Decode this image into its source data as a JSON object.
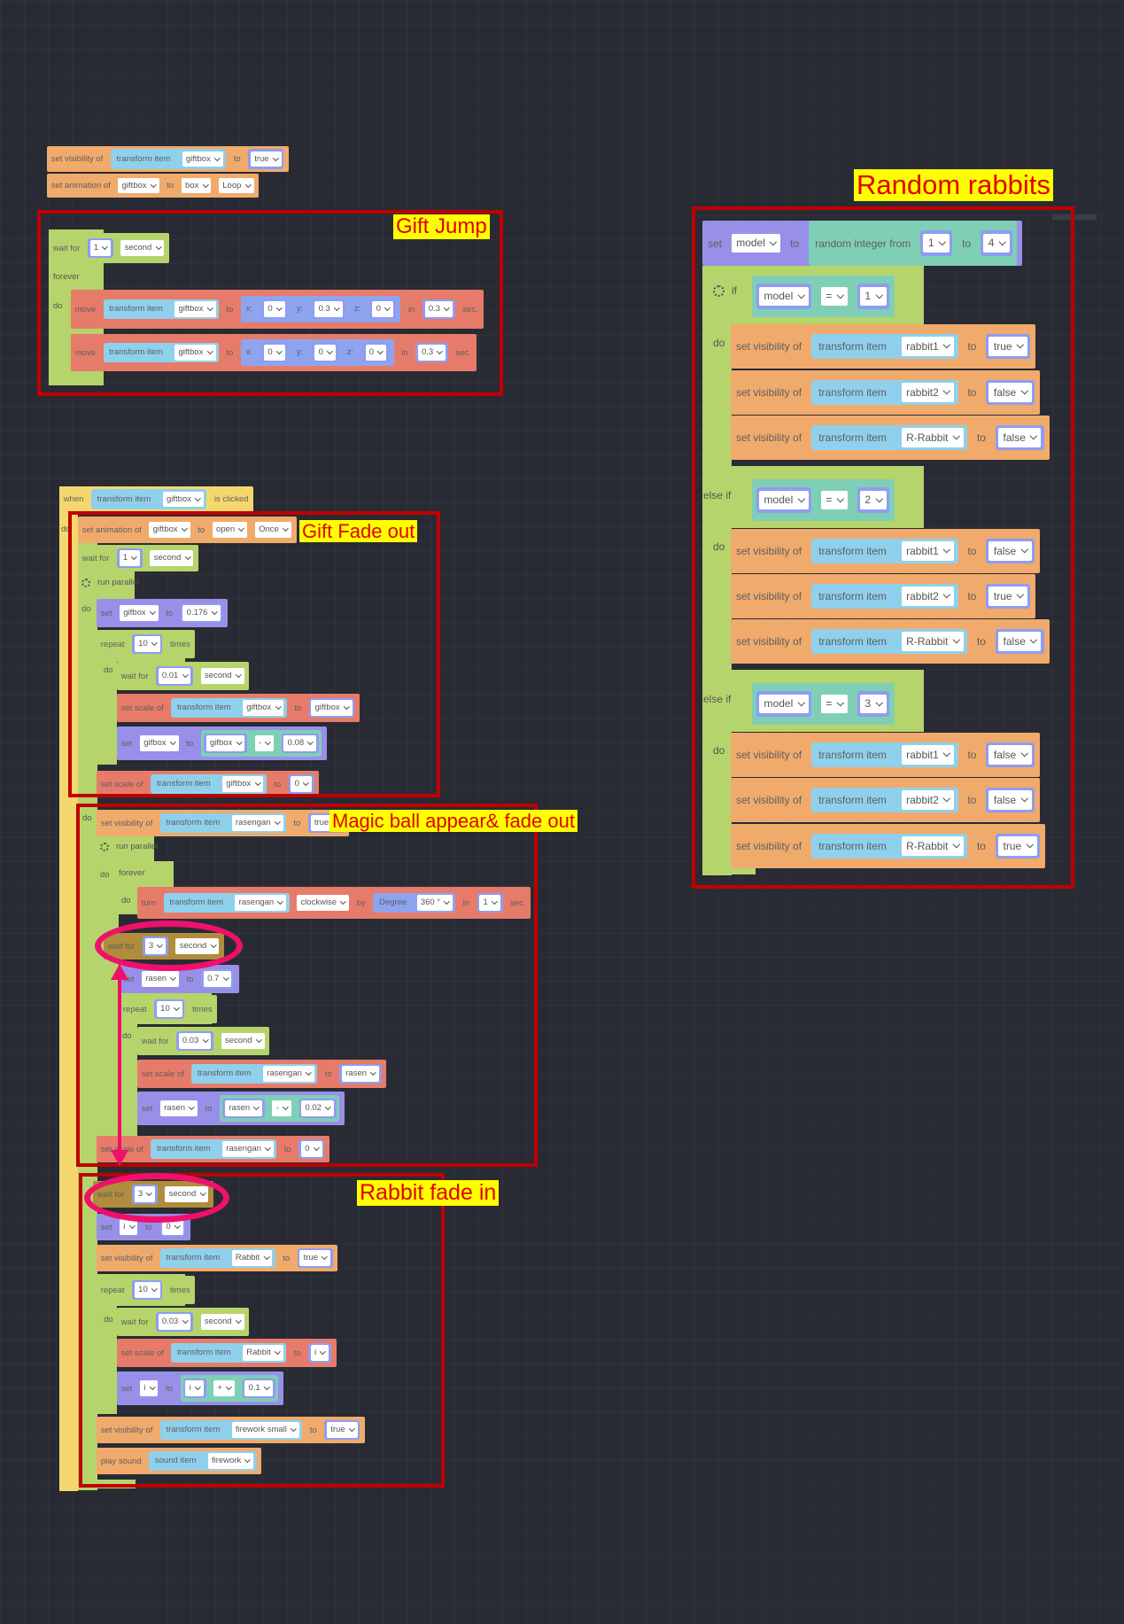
{
  "colors": {
    "orange": "#f0aa6c",
    "green": "#b6d46c",
    "red": "#e67b6a",
    "purple": "#9890e8",
    "yellow": "#f5d76e",
    "brown": "#b08c3c",
    "teal": "#7fcfb6",
    "annotation_border": "#c00000",
    "annotation_text": "#e00000",
    "annotation_bg": "#ffff00",
    "highlight": "#f0106c"
  },
  "icons": {
    "gear": "gear-icon",
    "dropdown": "chevron-down-icon"
  },
  "annotations": {
    "gift_jump": "Gift Jump",
    "gift_fade_out": "Gift Fade out",
    "magic_ball": "Magic ball appear& fade out",
    "rabbit_fade_in": "Rabbit fade in",
    "random_rabbits": "Random rabbits"
  },
  "labels": [
    "forever",
    "do",
    "do",
    "run parallel",
    "do",
    "do",
    "do",
    "run parallel",
    "do",
    "forever",
    "do",
    "do",
    "do",
    "if",
    "do",
    "else if",
    "do",
    "else if",
    "do"
  ],
  "blocks": [
    {
      "t": "orange",
      "p": [
        [
          "L",
          "set visibility of"
        ],
        [
          "I",
          "transform item",
          "giftbox"
        ],
        [
          "L",
          "to"
        ],
        [
          "S",
          "true"
        ]
      ]
    },
    {
      "t": "orange",
      "p": [
        [
          "L",
          "set animation of"
        ],
        [
          "D",
          "giftbox"
        ],
        [
          "L",
          "to"
        ],
        [
          "D",
          "box"
        ],
        [
          "D",
          "Loop"
        ]
      ]
    },
    {
      "t": "green",
      "p": [
        [
          "L",
          "wait for"
        ],
        [
          "S",
          "1"
        ],
        [
          "D",
          "second"
        ]
      ]
    },
    {
      "t": "red",
      "p": [
        [
          "L",
          "move"
        ],
        [
          "I",
          "transform item",
          "giftbox"
        ],
        [
          "L",
          "to"
        ],
        [
          "X",
          "x:",
          "0",
          "y:",
          "0.3",
          "z:",
          "0"
        ],
        [
          "L",
          "in"
        ],
        [
          "S",
          "0.3"
        ],
        [
          "L",
          "sec."
        ]
      ]
    },
    {
      "t": "red",
      "p": [
        [
          "L",
          "move"
        ],
        [
          "I",
          "transform item",
          "giftbox"
        ],
        [
          "L",
          "to"
        ],
        [
          "X",
          "x:",
          "0",
          "y:",
          "0",
          "z:",
          "0"
        ],
        [
          "L",
          "in"
        ],
        [
          "S",
          "0.3"
        ],
        [
          "L",
          "sec."
        ]
      ]
    },
    {
      "t": "yellow",
      "p": [
        [
          "L",
          "when"
        ],
        [
          "I",
          "transform item",
          "giftbox"
        ],
        [
          "L",
          "is clicked"
        ]
      ]
    },
    {
      "t": "orange",
      "p": [
        [
          "L",
          "set animation of"
        ],
        [
          "D",
          "giftbox"
        ],
        [
          "L",
          "to"
        ],
        [
          "D",
          "open"
        ],
        [
          "D",
          "Once"
        ]
      ]
    },
    {
      "t": "green",
      "p": [
        [
          "L",
          "wait for"
        ],
        [
          "S",
          "1"
        ],
        [
          "D",
          "second"
        ]
      ]
    },
    {
      "t": "purple",
      "p": [
        [
          "L",
          "set"
        ],
        [
          "D",
          "gifbox"
        ],
        [
          "L",
          "to"
        ],
        [
          "S",
          "0.176"
        ]
      ]
    },
    {
      "t": "green",
      "p": [
        [
          "L",
          "repeat"
        ],
        [
          "S",
          "10"
        ],
        [
          "L",
          "times"
        ]
      ]
    },
    {
      "t": "green",
      "p": [
        [
          "L",
          "wait for"
        ],
        [
          "S",
          "0.01"
        ],
        [
          "D",
          "second"
        ]
      ]
    },
    {
      "t": "red",
      "p": [
        [
          "L",
          "set scale of"
        ],
        [
          "I",
          "transform item",
          "giftbox"
        ],
        [
          "L",
          "to"
        ],
        [
          "S",
          "giftbox"
        ]
      ]
    },
    {
      "t": "purple",
      "p": [
        [
          "L",
          "set"
        ],
        [
          "D",
          "gifbox"
        ],
        [
          "L",
          "to"
        ],
        [
          "E",
          "gifbox",
          "-",
          "0.08"
        ]
      ]
    },
    {
      "t": "red",
      "p": [
        [
          "L",
          "set scale of"
        ],
        [
          "I",
          "transform item",
          "giftbox"
        ],
        [
          "L",
          "to"
        ],
        [
          "S",
          "0"
        ]
      ]
    },
    {
      "t": "orange",
      "p": [
        [
          "L",
          "set visibility of"
        ],
        [
          "I",
          "transform item",
          "rasengan"
        ],
        [
          "L",
          "to"
        ],
        [
          "S",
          "true"
        ]
      ]
    },
    {
      "t": "red",
      "p": [
        [
          "L",
          "turn"
        ],
        [
          "I",
          "transform item",
          "rasengan"
        ],
        [
          "D",
          "clockwise"
        ],
        [
          "L",
          "by"
        ],
        [
          "G",
          "Degree",
          "360 °"
        ],
        [
          "L",
          "in"
        ],
        [
          "S",
          "1"
        ],
        [
          "L",
          "sec."
        ]
      ]
    },
    {
      "t": "brown",
      "p": [
        [
          "L",
          "wait for"
        ],
        [
          "S",
          "3"
        ],
        [
          "D",
          "second"
        ]
      ]
    },
    {
      "t": "purple",
      "p": [
        [
          "L",
          "set"
        ],
        [
          "D",
          "rasen"
        ],
        [
          "L",
          "to"
        ],
        [
          "S",
          "0.7"
        ]
      ]
    },
    {
      "t": "green",
      "p": [
        [
          "L",
          "repeat"
        ],
        [
          "S",
          "10"
        ],
        [
          "L",
          "times"
        ]
      ]
    },
    {
      "t": "green",
      "p": [
        [
          "L",
          "wait for"
        ],
        [
          "S",
          "0.03"
        ],
        [
          "D",
          "second"
        ]
      ]
    },
    {
      "t": "red",
      "p": [
        [
          "L",
          "set scale of"
        ],
        [
          "I",
          "transform item",
          "rasengan"
        ],
        [
          "L",
          "to"
        ],
        [
          "S",
          "rasen"
        ]
      ]
    },
    {
      "t": "purple",
      "p": [
        [
          "L",
          "set"
        ],
        [
          "D",
          "rasen"
        ],
        [
          "L",
          "to"
        ],
        [
          "E",
          "rasen",
          "-",
          "0.02"
        ]
      ]
    },
    {
      "t": "red",
      "p": [
        [
          "L",
          "set scale of"
        ],
        [
          "I",
          "transform item",
          "rasengan"
        ],
        [
          "L",
          "to"
        ],
        [
          "S",
          "0"
        ]
      ]
    },
    {
      "t": "brown",
      "p": [
        [
          "L",
          "wait for"
        ],
        [
          "S",
          "3"
        ],
        [
          "D",
          "second"
        ]
      ]
    },
    {
      "t": "purple",
      "p": [
        [
          "L",
          "set"
        ],
        [
          "D",
          "i"
        ],
        [
          "L",
          "to"
        ],
        [
          "S",
          "0"
        ]
      ]
    },
    {
      "t": "orange",
      "p": [
        [
          "L",
          "set visibility of"
        ],
        [
          "I",
          "transform item",
          "Rabbit"
        ],
        [
          "L",
          "to"
        ],
        [
          "S",
          "true"
        ]
      ]
    },
    {
      "t": "green",
      "p": [
        [
          "L",
          "repeat"
        ],
        [
          "S",
          "10"
        ],
        [
          "L",
          "times"
        ]
      ]
    },
    {
      "t": "green",
      "p": [
        [
          "L",
          "wait for"
        ],
        [
          "S",
          "0.03"
        ],
        [
          "D",
          "second"
        ]
      ]
    },
    {
      "t": "red",
      "p": [
        [
          "L",
          "set scale of"
        ],
        [
          "I",
          "transform item",
          "Rabbit"
        ],
        [
          "L",
          "to"
        ],
        [
          "S",
          "i"
        ]
      ]
    },
    {
      "t": "purple",
      "p": [
        [
          "L",
          "set"
        ],
        [
          "D",
          "i"
        ],
        [
          "L",
          "to"
        ],
        [
          "E",
          "i",
          "+",
          "0.1"
        ]
      ]
    },
    {
      "t": "orange",
      "p": [
        [
          "L",
          "set visibility of"
        ],
        [
          "I",
          "transform item",
          "firework small"
        ],
        [
          "L",
          "to"
        ],
        [
          "S",
          "true"
        ]
      ]
    },
    {
      "t": "orange",
      "p": [
        [
          "L",
          "play sound"
        ],
        [
          "I",
          "sound item",
          "firework"
        ]
      ]
    },
    {
      "t": "purple",
      "p": [
        [
          "L",
          "set"
        ],
        [
          "D",
          "model"
        ],
        [
          "L",
          "to"
        ],
        [
          "R",
          "random integer from",
          "1",
          "to",
          "4"
        ]
      ]
    },
    {
      "t": "teal",
      "p": [
        [
          "S",
          "model"
        ],
        [
          "D",
          "="
        ],
        [
          "S",
          "1"
        ]
      ]
    },
    {
      "t": "orange",
      "p": [
        [
          "L",
          "set visibility of"
        ],
        [
          "I",
          "transform item",
          "rabbit1"
        ],
        [
          "L",
          "to"
        ],
        [
          "S",
          "true"
        ]
      ]
    },
    {
      "t": "orange",
      "p": [
        [
          "L",
          "set visibility of"
        ],
        [
          "I",
          "transform item",
          "rabbit2"
        ],
        [
          "L",
          "to"
        ],
        [
          "S",
          "false"
        ]
      ]
    },
    {
      "t": "orange",
      "p": [
        [
          "L",
          "set visibility of"
        ],
        [
          "I",
          "transform item",
          "R-Rabbit"
        ],
        [
          "L",
          "to"
        ],
        [
          "S",
          "false"
        ]
      ]
    },
    {
      "t": "teal",
      "p": [
        [
          "S",
          "model"
        ],
        [
          "D",
          "="
        ],
        [
          "S",
          "2"
        ]
      ]
    },
    {
      "t": "orange",
      "p": [
        [
          "L",
          "set visibility of"
        ],
        [
          "I",
          "transform item",
          "rabbit1"
        ],
        [
          "L",
          "to"
        ],
        [
          "S",
          "false"
        ]
      ]
    },
    {
      "t": "orange",
      "p": [
        [
          "L",
          "set visibility of"
        ],
        [
          "I",
          "transform item",
          "rabbit2"
        ],
        [
          "L",
          "to"
        ],
        [
          "S",
          "true"
        ]
      ]
    },
    {
      "t": "orange",
      "p": [
        [
          "L",
          "set visibility of"
        ],
        [
          "I",
          "transform item",
          "R-Rabbit"
        ],
        [
          "L",
          "to"
        ],
        [
          "S",
          "false"
        ]
      ]
    },
    {
      "t": "teal",
      "p": [
        [
          "S",
          "model"
        ],
        [
          "D",
          "="
        ],
        [
          "S",
          "3"
        ]
      ]
    },
    {
      "t": "orange",
      "p": [
        [
          "L",
          "set visibility of"
        ],
        [
          "I",
          "transform item",
          "rabbit1"
        ],
        [
          "L",
          "to"
        ],
        [
          "S",
          "false"
        ]
      ]
    },
    {
      "t": "orange",
      "p": [
        [
          "L",
          "set visibility of"
        ],
        [
          "I",
          "transform item",
          "rabbit2"
        ],
        [
          "L",
          "to"
        ],
        [
          "S",
          "false"
        ]
      ]
    },
    {
      "t": "orange",
      "p": [
        [
          "L",
          "set visibility of"
        ],
        [
          "I",
          "transform item",
          "R-Rabbit"
        ],
        [
          "L",
          "to"
        ],
        [
          "S",
          "true"
        ]
      ]
    }
  ]
}
